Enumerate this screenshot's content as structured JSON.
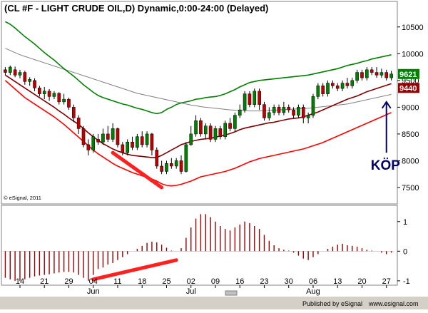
{
  "header": {
    "title": "(CL #F - LIGHT CRUDE OIL,D) Dynamic,0:00-24:00 (Delayed)"
  },
  "footer": {
    "published_by": "Published by eSignal",
    "url": "www.esignal.com",
    "copyright": "© eSignal, 2011"
  },
  "colors": {
    "background": "#ffffff",
    "candle_up": "#008000",
    "candle_down": "#c00000",
    "upper_band": "#008000",
    "middle_line": "#800000",
    "lower_band": "#ff0000",
    "long_ma": "#808080",
    "oscillator": "#990000",
    "trend_line": "#ff2020",
    "arrow": "#000066",
    "badge_upper": "#008000",
    "badge_lower": "#990000"
  },
  "chart_data": [
    {
      "type": "candlestick",
      "title": "(CL #F - LIGHT CRUDE OIL,D) Dynamic,0:00-24:00 (Delayed)",
      "y_ticks": [
        7500,
        8000,
        8500,
        9000,
        9500,
        10000,
        10500
      ],
      "ylim": [
        7220,
        10950
      ],
      "x_tick_labels": [
        "14",
        "21",
        "29",
        "04",
        "11",
        "18",
        "25",
        "02",
        "09",
        "16",
        "23",
        "30",
        "06",
        "13",
        "20",
        "27"
      ],
      "x_tick_index": [
        3,
        8,
        13,
        18,
        23,
        28,
        33,
        38,
        43,
        48,
        53,
        58,
        63,
        68,
        73,
        78
      ],
      "month_labels": [
        {
          "label": "Jun",
          "index": 18
        },
        {
          "label": "Jul",
          "index": 38
        },
        {
          "label": "Aug",
          "index": 63
        }
      ],
      "price_badges": [
        {
          "value": 9621,
          "series": "upper"
        },
        {
          "value": 9440,
          "series": "lower"
        }
      ],
      "annotation": {
        "text": "KÖP",
        "arrow_index": 78,
        "arrow_from": 8150,
        "arrow_to": 9100
      },
      "candles": [
        {
          "o": 9700,
          "c": 9650,
          "h": 9750,
          "l": 9600
        },
        {
          "o": 9650,
          "c": 9750,
          "h": 9780,
          "l": 9600
        },
        {
          "o": 9700,
          "c": 9600,
          "h": 9760,
          "l": 9560
        },
        {
          "o": 9600,
          "c": 9650,
          "h": 9700,
          "l": 9540
        },
        {
          "o": 9650,
          "c": 9480,
          "h": 9680,
          "l": 9420
        },
        {
          "o": 9480,
          "c": 9520,
          "h": 9560,
          "l": 9400
        },
        {
          "o": 9500,
          "c": 9360,
          "h": 9540,
          "l": 9300
        },
        {
          "o": 9360,
          "c": 9250,
          "h": 9400,
          "l": 9200
        },
        {
          "o": 9250,
          "c": 9300,
          "h": 9380,
          "l": 9150
        },
        {
          "o": 9300,
          "c": 9200,
          "h": 9340,
          "l": 9120
        },
        {
          "o": 9200,
          "c": 9260,
          "h": 9300,
          "l": 9150
        },
        {
          "o": 9260,
          "c": 9100,
          "h": 9280,
          "l": 9050
        },
        {
          "o": 9100,
          "c": 9150,
          "h": 9250,
          "l": 9050
        },
        {
          "o": 9150,
          "c": 9000,
          "h": 9180,
          "l": 8950
        },
        {
          "o": 9000,
          "c": 8800,
          "h": 9050,
          "l": 8720
        },
        {
          "o": 8800,
          "c": 8600,
          "h": 8850,
          "l": 8500
        },
        {
          "o": 8600,
          "c": 8300,
          "h": 8650,
          "l": 8250
        },
        {
          "o": 8300,
          "c": 8200,
          "h": 8400,
          "l": 8100
        },
        {
          "o": 8200,
          "c": 8450,
          "h": 8500,
          "l": 8150
        },
        {
          "o": 8400,
          "c": 8350,
          "h": 8500,
          "l": 8300
        },
        {
          "o": 8350,
          "c": 8500,
          "h": 8600,
          "l": 8300
        },
        {
          "o": 8500,
          "c": 8400,
          "h": 8650,
          "l": 8350
        },
        {
          "o": 8400,
          "c": 8600,
          "h": 8700,
          "l": 8350
        },
        {
          "o": 8600,
          "c": 8300,
          "h": 8620,
          "l": 8250
        },
        {
          "o": 8300,
          "c": 8150,
          "h": 8350,
          "l": 8100
        },
        {
          "o": 8150,
          "c": 8350,
          "h": 8400,
          "l": 8100
        },
        {
          "o": 8350,
          "c": 8250,
          "h": 8450,
          "l": 8200
        },
        {
          "o": 8250,
          "c": 8450,
          "h": 8500,
          "l": 8200
        },
        {
          "o": 8450,
          "c": 8300,
          "h": 8550,
          "l": 8250
        },
        {
          "o": 8300,
          "c": 8500,
          "h": 8550,
          "l": 8250
        },
        {
          "o": 8500,
          "c": 8200,
          "h": 8520,
          "l": 8100
        },
        {
          "o": 8200,
          "c": 7900,
          "h": 8250,
          "l": 7850
        },
        {
          "o": 7900,
          "c": 7800,
          "h": 8000,
          "l": 7750
        },
        {
          "o": 7800,
          "c": 7950,
          "h": 8000,
          "l": 7750
        },
        {
          "o": 7950,
          "c": 7900,
          "h": 8050,
          "l": 7850
        },
        {
          "o": 7900,
          "c": 8000,
          "h": 8050,
          "l": 7850
        },
        {
          "o": 8000,
          "c": 7800,
          "h": 8100,
          "l": 7750
        },
        {
          "o": 7800,
          "c": 8300,
          "h": 8350,
          "l": 7780
        },
        {
          "o": 8300,
          "c": 8500,
          "h": 8650,
          "l": 8280
        },
        {
          "o": 8500,
          "c": 8750,
          "h": 8850,
          "l": 8450
        },
        {
          "o": 8750,
          "c": 8500,
          "h": 8800,
          "l": 8450
        },
        {
          "o": 8500,
          "c": 8650,
          "h": 8700,
          "l": 8400
        },
        {
          "o": 8650,
          "c": 8400,
          "h": 8700,
          "l": 8350
        },
        {
          "o": 8400,
          "c": 8600,
          "h": 8650,
          "l": 8350
        },
        {
          "o": 8600,
          "c": 8450,
          "h": 8650,
          "l": 8400
        },
        {
          "o": 8450,
          "c": 8700,
          "h": 8750,
          "l": 8400
        },
        {
          "o": 8700,
          "c": 8600,
          "h": 8800,
          "l": 8550
        },
        {
          "o": 8600,
          "c": 8850,
          "h": 8900,
          "l": 8550
        },
        {
          "o": 8850,
          "c": 8950,
          "h": 9050,
          "l": 8800
        },
        {
          "o": 8950,
          "c": 9250,
          "h": 9300,
          "l": 8900
        },
        {
          "o": 9250,
          "c": 9050,
          "h": 9300,
          "l": 9000
        },
        {
          "o": 9050,
          "c": 9300,
          "h": 9350,
          "l": 9000
        },
        {
          "o": 9300,
          "c": 9050,
          "h": 9350,
          "l": 8950
        },
        {
          "o": 9050,
          "c": 8800,
          "h": 9100,
          "l": 8750
        },
        {
          "o": 8800,
          "c": 8900,
          "h": 9000,
          "l": 8750
        },
        {
          "o": 8900,
          "c": 9000,
          "h": 9050,
          "l": 8850
        },
        {
          "o": 9000,
          "c": 8900,
          "h": 9050,
          "l": 8850
        },
        {
          "o": 8900,
          "c": 9000,
          "h": 9100,
          "l": 8850
        },
        {
          "o": 9000,
          "c": 8950,
          "h": 9050,
          "l": 8900
        },
        {
          "o": 8950,
          "c": 8850,
          "h": 9000,
          "l": 8800
        },
        {
          "o": 8850,
          "c": 9000,
          "h": 9050,
          "l": 8800
        },
        {
          "o": 9000,
          "c": 8800,
          "h": 9050,
          "l": 8700
        },
        {
          "o": 8800,
          "c": 8850,
          "h": 8900,
          "l": 8700
        },
        {
          "o": 8850,
          "c": 9200,
          "h": 9250,
          "l": 8800
        },
        {
          "o": 9200,
          "c": 9400,
          "h": 9450,
          "l": 9150
        },
        {
          "o": 9400,
          "c": 9250,
          "h": 9450,
          "l": 9200
        },
        {
          "o": 9250,
          "c": 9450,
          "h": 9500,
          "l": 9200
        },
        {
          "o": 9450,
          "c": 9400,
          "h": 9500,
          "l": 9350
        },
        {
          "o": 9400,
          "c": 9350,
          "h": 9450,
          "l": 9300
        },
        {
          "o": 9350,
          "c": 9450,
          "h": 9500,
          "l": 9300
        },
        {
          "o": 9450,
          "c": 9400,
          "h": 9550,
          "l": 9350
        },
        {
          "o": 9400,
          "c": 9500,
          "h": 9550,
          "l": 9350
        },
        {
          "o": 9500,
          "c": 9650,
          "h": 9700,
          "l": 9450
        },
        {
          "o": 9650,
          "c": 9550,
          "h": 9700,
          "l": 9500
        },
        {
          "o": 9550,
          "c": 9700,
          "h": 9750,
          "l": 9500
        },
        {
          "o": 9700,
          "c": 9650,
          "h": 9750,
          "l": 9600
        },
        {
          "o": 9650,
          "c": 9600,
          "h": 9750,
          "l": 9550
        },
        {
          "o": 9600,
          "c": 9650,
          "h": 9720,
          "l": 9550
        },
        {
          "o": 9650,
          "c": 9550,
          "h": 9700,
          "l": 9500
        },
        {
          "o": 9550,
          "c": 9621,
          "h": 9680,
          "l": 9500
        }
      ],
      "upper_band": [
        10600,
        10550,
        10480,
        10400,
        10320,
        10250,
        10180,
        10100,
        10020,
        9950,
        9880,
        9800,
        9720,
        9650,
        9580,
        9500,
        9420,
        9350,
        9280,
        9220,
        9180,
        9150,
        9120,
        9090,
        9060,
        9040,
        9010,
        8980,
        8960,
        8930,
        8900,
        8880,
        8900,
        8960,
        9000,
        9050,
        9080,
        9100,
        9120,
        9150,
        9160,
        9180,
        9190,
        9200,
        9220,
        9250,
        9290,
        9330,
        9380,
        9420,
        9460,
        9480,
        9500,
        9510,
        9520,
        9530,
        9540,
        9550,
        9560,
        9570,
        9580,
        9590,
        9600,
        9620,
        9640,
        9660,
        9680,
        9700,
        9720,
        9750,
        9780,
        9800,
        9820,
        9850,
        9870,
        9900,
        9920,
        9940,
        9960,
        9980
      ],
      "middle_line": [
        9600,
        9540,
        9480,
        9420,
        9360,
        9300,
        9240,
        9180,
        9120,
        9060,
        9000,
        8930,
        8870,
        8800,
        8740,
        8680,
        8600,
        8520,
        8450,
        8380,
        8320,
        8270,
        8220,
        8180,
        8150,
        8120,
        8100,
        8090,
        8080,
        8070,
        8060,
        8060,
        8100,
        8150,
        8200,
        8250,
        8300,
        8330,
        8360,
        8380,
        8400,
        8410,
        8420,
        8440,
        8460,
        8480,
        8510,
        8540,
        8580,
        8610,
        8630,
        8650,
        8670,
        8690,
        8710,
        8720,
        8740,
        8760,
        8780,
        8790,
        8800,
        8820,
        8850,
        8880,
        8910,
        8950,
        8990,
        9030,
        9070,
        9110,
        9150,
        9180,
        9210,
        9250,
        9290,
        9320,
        9350,
        9380,
        9410,
        9440
      ],
      "lower_band": [
        9500,
        9420,
        9340,
        9260,
        9180,
        9120,
        9060,
        9000,
        8940,
        8880,
        8820,
        8750,
        8680,
        8600,
        8520,
        8440,
        8360,
        8280,
        8200,
        8130,
        8070,
        8010,
        7950,
        7900,
        7860,
        7820,
        7780,
        7750,
        7720,
        7690,
        7660,
        7620,
        7570,
        7540,
        7530,
        7540,
        7560,
        7590,
        7620,
        7660,
        7700,
        7720,
        7740,
        7760,
        7780,
        7800,
        7830,
        7860,
        7900,
        7940,
        7980,
        8010,
        8040,
        8060,
        8080,
        8100,
        8120,
        8140,
        8160,
        8180,
        8200,
        8220,
        8250,
        8280,
        8310,
        8340,
        8380,
        8420,
        8460,
        8500,
        8540,
        8580,
        8620,
        8660,
        8700,
        8740,
        8780,
        8820,
        8860,
        8900
      ],
      "long_ma": [
        10100,
        10060,
        10020,
        9980,
        9950,
        9920,
        9890,
        9860,
        9830,
        9800,
        9770,
        9740,
        9710,
        9680,
        9650,
        9620,
        9590,
        9560,
        9530,
        9500,
        9470,
        9440,
        9410,
        9380,
        9350,
        9320,
        9290,
        9260,
        9240,
        9220,
        9200,
        9180,
        9160,
        9140,
        9120,
        9100,
        9080,
        9060,
        9040,
        9030,
        9010,
        9000,
        8990,
        8980,
        8970,
        8960,
        8950,
        8945,
        8940,
        8935,
        8930,
        8930,
        8930,
        8935,
        8940,
        8945,
        8950,
        8955,
        8960,
        8965,
        8970,
        8975,
        8980,
        8990,
        9000,
        9010,
        9020,
        9030,
        9040,
        9050,
        9060,
        9080,
        9100,
        9120,
        9140,
        9160,
        9180,
        9200,
        9220,
        9240
      ],
      "trend_line": {
        "from_index": 22,
        "from_value": 8150,
        "to_index": 32,
        "to_value": 7500
      }
    },
    {
      "type": "bar",
      "name": "oscillator",
      "y_ticks": [
        1,
        0,
        -1
      ],
      "ylim": [
        -1.1,
        1.5
      ],
      "values": [
        -0.9,
        -0.95,
        -1.0,
        -1.0,
        -0.95,
        -0.9,
        -0.85,
        -0.82,
        -0.8,
        -0.78,
        -0.75,
        -0.72,
        -0.7,
        -0.7,
        -0.72,
        -0.8,
        -0.9,
        -1.0,
        -0.8,
        -0.6,
        -0.55,
        -0.45,
        -0.4,
        -0.3,
        -0.2,
        -0.1,
        0.0,
        0.08,
        0.18,
        0.28,
        0.32,
        0.3,
        0.22,
        0.12,
        0.02,
        0.0,
        0.1,
        0.45,
        0.8,
        1.1,
        1.25,
        1.25,
        1.15,
        1.0,
        0.85,
        0.75,
        0.7,
        0.8,
        0.9,
        1.0,
        0.95,
        0.85,
        0.75,
        0.55,
        0.35,
        0.2,
        0.1,
        0.05,
        0.02,
        -0.05,
        -0.15,
        -0.25,
        -0.3,
        -0.2,
        -0.1,
        0.0,
        0.08,
        0.15,
        0.22,
        0.25,
        0.2,
        0.18,
        0.15,
        0.1,
        0.05,
        0.02,
        0.0,
        -0.05,
        -0.1,
        -0.05
      ],
      "trend_line": {
        "from_index": 18,
        "from_value": -0.95,
        "to_index": 35,
        "to_value": -0.3
      }
    }
  ]
}
